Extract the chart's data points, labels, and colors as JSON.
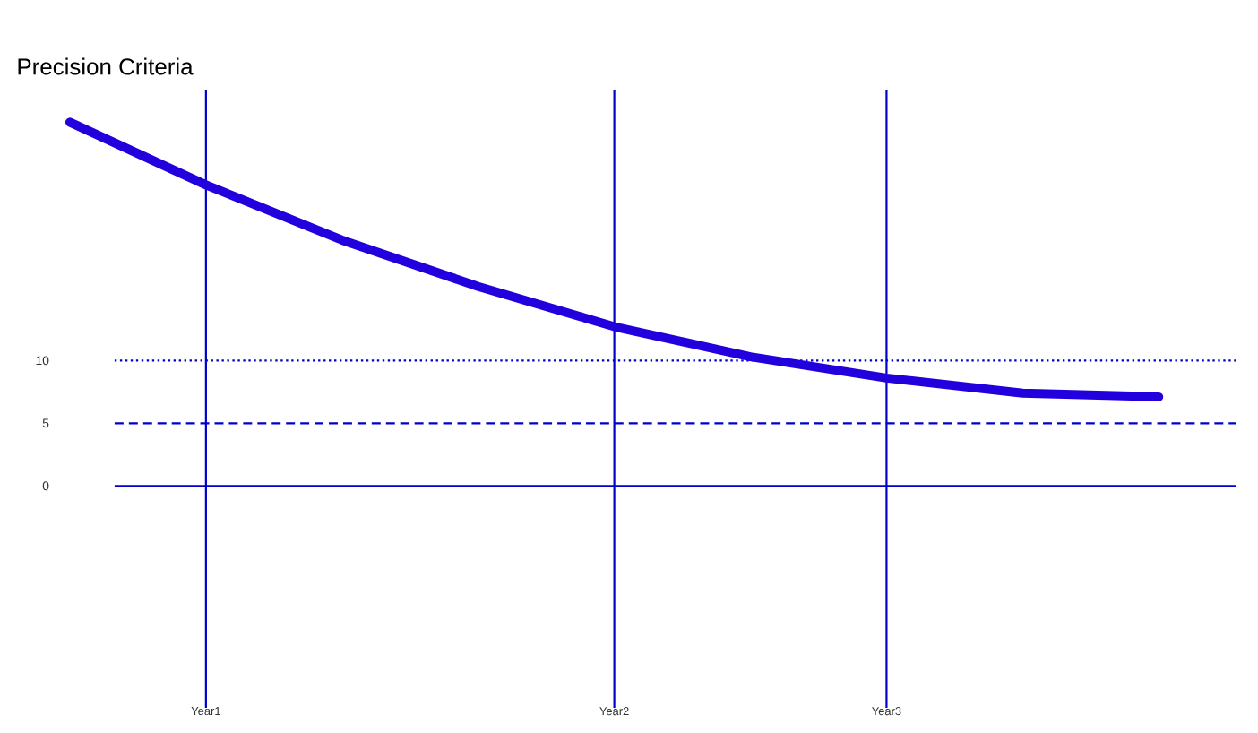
{
  "chart_data": {
    "type": "line",
    "title": "Precision Criteria",
    "categories": [
      null,
      "Year1",
      null,
      null,
      "Year2",
      null,
      "Year3",
      null,
      null
    ],
    "series": [
      {
        "color": "#2200dd",
        "values": [
          29.0,
          24.0,
          19.6,
          15.9,
          12.7,
          10.3,
          8.6,
          7.4,
          7.1
        ]
      }
    ],
    "ylim": [
      -17.7,
      31.6
    ],
    "yticks": [
      0,
      5,
      10
    ],
    "grid": "x",
    "marker": "none",
    "line_style": "solid",
    "ref_lines": [
      {
        "axis": "y",
        "value": 10,
        "color": "#0000cc",
        "line_style": "dotted"
      },
      {
        "axis": "y",
        "value": 5,
        "color": "#0000cc",
        "line_style": "dashed"
      },
      {
        "axis": "y",
        "value": 0,
        "color": "#0000cc",
        "line_style": "solid"
      }
    ]
  }
}
